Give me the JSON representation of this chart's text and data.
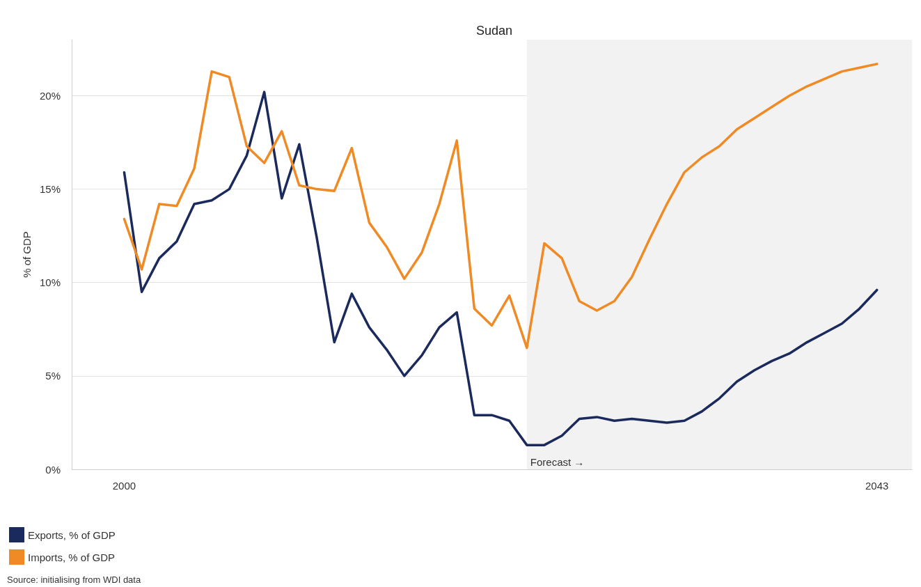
{
  "chart_data": {
    "type": "line",
    "title": "Sudan",
    "ylabel": "% of GDP",
    "x": [
      2000,
      2001,
      2002,
      2003,
      2004,
      2005,
      2006,
      2007,
      2008,
      2009,
      2010,
      2011,
      2012,
      2013,
      2014,
      2015,
      2016,
      2017,
      2018,
      2019,
      2020,
      2021,
      2022,
      2023,
      2024,
      2025,
      2026,
      2027,
      2028,
      2029,
      2030,
      2031,
      2032,
      2033,
      2034,
      2035,
      2036,
      2037,
      2038,
      2039,
      2040,
      2041,
      2042,
      2043
    ],
    "series": [
      {
        "name": "Exports, % of GDP",
        "color": "#1b2a5c",
        "values": [
          15.9,
          9.5,
          11.3,
          12.2,
          14.2,
          14.4,
          15.0,
          16.8,
          20.2,
          14.5,
          17.4,
          12.4,
          6.8,
          9.4,
          7.6,
          6.4,
          5.0,
          6.1,
          7.6,
          8.4,
          2.9,
          2.9,
          2.6,
          1.3,
          1.3,
          1.8,
          2.7,
          2.8,
          2.6,
          2.7,
          2.6,
          2.5,
          2.6,
          3.1,
          3.8,
          4.7,
          5.3,
          5.8,
          6.2,
          6.8,
          7.3,
          7.8,
          8.6,
          9.6
        ]
      },
      {
        "name": "Imports, % of GDP",
        "color": "#f08a24",
        "values": [
          13.4,
          10.7,
          14.2,
          14.1,
          16.1,
          21.3,
          21.0,
          17.3,
          16.4,
          18.1,
          15.2,
          15.0,
          14.9,
          17.2,
          13.2,
          11.9,
          10.2,
          11.6,
          14.2,
          17.6,
          8.6,
          7.7,
          9.3,
          6.5,
          12.1,
          11.3,
          9.0,
          8.5,
          9.0,
          10.3,
          12.3,
          14.2,
          15.9,
          16.7,
          17.3,
          18.2,
          18.8,
          19.4,
          20.0,
          20.5,
          20.9,
          21.3,
          21.5,
          21.7
        ]
      }
    ],
    "xlim": [
      1997,
      2045
    ],
    "xticks": [
      2000,
      2043
    ],
    "ylim": [
      0,
      23
    ],
    "yticks": [
      {
        "value": 0,
        "label": "0%"
      },
      {
        "value": 5,
        "label": "5%"
      },
      {
        "value": 10,
        "label": "10%"
      },
      {
        "value": 15,
        "label": "15%"
      },
      {
        "value": 20,
        "label": "20%"
      }
    ],
    "bands": [
      {
        "axis": "x",
        "from": 2023,
        "to": 2045,
        "label": "Forecast →",
        "color": "#f2f2f2"
      }
    ],
    "grid": "y",
    "legend": "bottom left",
    "line_style": "solid",
    "annotations": [
      "Source: initialising from WDI data"
    ]
  }
}
